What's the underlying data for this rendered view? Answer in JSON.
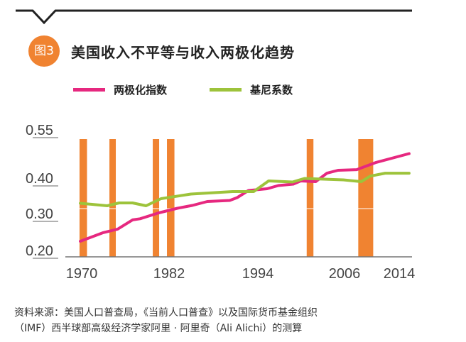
{
  "header": {
    "badge": "图3",
    "title": "美国收入不平等与收入两极化趋势"
  },
  "legend": [
    {
      "label": "两极化指数",
      "color": "#E6287F"
    },
    {
      "label": "基尼系数",
      "color": "#9DC33B"
    }
  ],
  "chart_data": {
    "type": "line",
    "title": "美国收入不平等与收入两极化趋势",
    "xlabel": "",
    "ylabel": "",
    "x_ticks": [
      "1970",
      "1982",
      "1994",
      "2006",
      "2014"
    ],
    "y_ticks": [
      "0.55",
      "0.40",
      "0.30",
      "0.20"
    ],
    "xlim": [
      1970,
      2014
    ],
    "ylim": [
      0.2,
      0.55
    ],
    "grid": false,
    "legend_position": "top-left",
    "recession_color": "#F08331",
    "recession_bars": [
      [
        1968.9,
        1969.9
      ],
      [
        1972.9,
        1973.7
      ],
      [
        1978.7,
        1979.5
      ],
      [
        1980.6,
        1981.6
      ],
      [
        1999.3,
        2000.2
      ],
      [
        2006.2,
        2008.2
      ]
    ],
    "series": [
      {
        "name": "两极化指数",
        "color": "#E6287F",
        "x": [
          1970,
          1973,
          1975,
          1977,
          1978,
          1980.5,
          1983,
          1985,
          1987,
          1990,
          1991,
          1992.5,
          1995,
          1996.5,
          1998.5,
          1999.5,
          2001.5,
          2003,
          2004.5,
          2007,
          2009.5,
          2014
        ],
        "y": [
          0.223,
          0.246,
          0.256,
          0.281,
          0.284,
          0.3,
          0.313,
          0.321,
          0.332,
          0.335,
          0.343,
          0.363,
          0.368,
          0.377,
          0.381,
          0.39,
          0.388,
          0.413,
          0.422,
          0.424,
          0.446,
          0.474
        ]
      },
      {
        "name": "基尼系数",
        "color": "#9DC33B",
        "x": [
          1970,
          1973.6,
          1975.2,
          1977,
          1978.8,
          1980.8,
          1984.8,
          1990.4,
          1993.2,
          1995.2,
          1998.4,
          2000,
          2005.2,
          2007.6,
          2008.8,
          2010.8,
          2014
        ],
        "y": [
          0.327,
          0.32,
          0.328,
          0.328,
          0.32,
          0.34,
          0.353,
          0.36,
          0.36,
          0.39,
          0.387,
          0.397,
          0.393,
          0.388,
          0.404,
          0.413,
          0.413
        ]
      }
    ]
  },
  "footer": {
    "line1": "资料来源：美国人口普查局，《当前人口普查》以及国际货币基金组织",
    "line2": "（IMF）西半球部高级经济学家阿里 · 阿里奇（Ali Alichi）的测算"
  }
}
